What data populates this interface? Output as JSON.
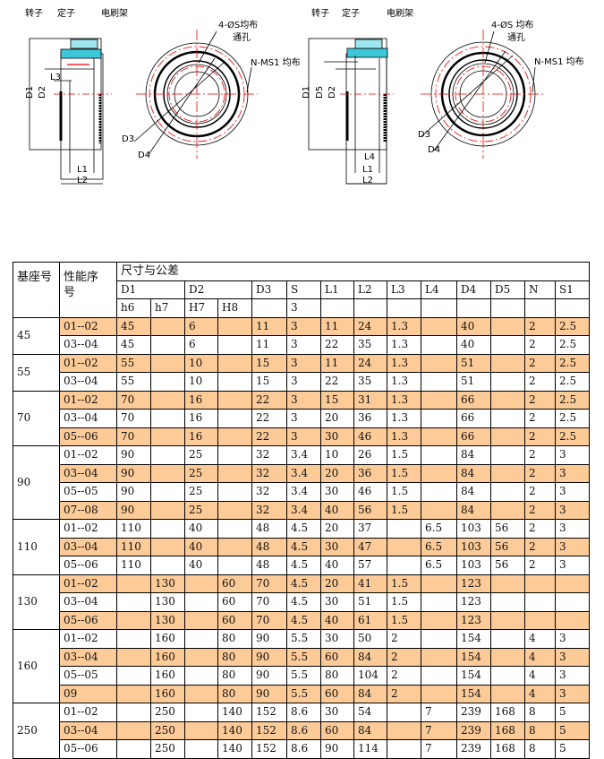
{
  "drawing_left": {
    "rotor": "转子",
    "stator": "定子",
    "brush": "电刷架",
    "holes": "4-ØS均布",
    "through": "通孔",
    "nms": "N-MS1 均布",
    "D1": "D1",
    "D2": "D2",
    "D3": "D3",
    "D4": "D4",
    "L1": "L1",
    "L2": "L2",
    "L3": "L3"
  },
  "drawing_right": {
    "rotor": "转子",
    "stator": "定子",
    "brush": "电刷架",
    "holes": "4-ØS 均布",
    "through": "通孔",
    "nms": "N-MS1 均布",
    "D1": "D1",
    "D5": "D5",
    "D2": "D2",
    "D3": "D3",
    "D4": "D4",
    "L1": "L1",
    "L2": "L2",
    "L4": "L4"
  },
  "table": {
    "h_base": "基座号",
    "h_seq": "性能序号",
    "h_dims": "尺寸与公差",
    "cols": [
      "D1",
      "D2",
      "D3",
      "S",
      "L1",
      "L2",
      "L3",
      "L4",
      "D4",
      "D5",
      "N",
      "S1"
    ],
    "tols": [
      "h6",
      "h7",
      "H7",
      "H8",
      "",
      "3",
      "",
      "",
      "",
      "",
      "",
      "",
      "",
      "",
      ""
    ],
    "highlight": "#fdcb98",
    "groups": [
      {
        "base": "45",
        "rows": [
          {
            "hl": true,
            "v": [
              "01--02",
              "45",
              "",
              "6",
              "",
              "11",
              "3",
              "11",
              "24",
              "1.3",
              "",
              "40",
              "",
              "2",
              "2.5"
            ]
          },
          {
            "hl": false,
            "v": [
              "03--04",
              "45",
              "",
              "6",
              "",
              "11",
              "3",
              "22",
              "35",
              "1.3",
              "",
              "40",
              "",
              "2",
              "2.5"
            ]
          }
        ]
      },
      {
        "base": "55",
        "rows": [
          {
            "hl": true,
            "v": [
              "01--02",
              "55",
              "",
              "10",
              "",
              "15",
              "3",
              "11",
              "24",
              "1.3",
              "",
              "51",
              "",
              "2",
              "2.5"
            ]
          },
          {
            "hl": false,
            "v": [
              "03--04",
              "55",
              "",
              "10",
              "",
              "15",
              "3",
              "22",
              "35",
              "1.3",
              "",
              "51",
              "",
              "2",
              "2.5"
            ]
          }
        ]
      },
      {
        "base": "70",
        "rows": [
          {
            "hl": true,
            "v": [
              "01--02",
              "70",
              "",
              "16",
              "",
              "22",
              "3",
              "15",
              "31",
              "1.3",
              "",
              "66",
              "",
              "2",
              "2.5"
            ]
          },
          {
            "hl": false,
            "v": [
              "03--04",
              "70",
              "",
              "16",
              "",
              "22",
              "3",
              "20",
              "36",
              "1.3",
              "",
              "66",
              "",
              "2",
              "2.5"
            ]
          },
          {
            "hl": true,
            "v": [
              "05--06",
              "70",
              "",
              "16",
              "",
              "22",
              "3",
              "30",
              "46",
              "1.3",
              "",
              "66",
              "",
              "2",
              "2.5"
            ]
          }
        ]
      },
      {
        "base": "90",
        "rows": [
          {
            "hl": false,
            "v": [
              "01--02",
              "90",
              "",
              "25",
              "",
              "32",
              "3.4",
              "10",
              "26",
              "1.5",
              "",
              "84",
              "",
              "2",
              "3"
            ]
          },
          {
            "hl": true,
            "v": [
              "03--04",
              "90",
              "",
              "25",
              "",
              "32",
              "3.4",
              "20",
              "36",
              "1.5",
              "",
              "84",
              "",
              "2",
              "3"
            ]
          },
          {
            "hl": false,
            "v": [
              "05--05",
              "90",
              "",
              "25",
              "",
              "32",
              "3.4",
              "30",
              "46",
              "1.5",
              "",
              "84",
              "",
              "2",
              "3"
            ]
          },
          {
            "hl": true,
            "v": [
              "07--08",
              "90",
              "",
              "25",
              "",
              "32",
              "3.4",
              "40",
              "56",
              "1.5",
              "",
              "84",
              "",
              "2",
              "3"
            ]
          }
        ]
      },
      {
        "base": "110",
        "rows": [
          {
            "hl": false,
            "v": [
              "01--02",
              "110",
              "",
              "40",
              "",
              "48",
              "4.5",
              "20",
              "37",
              "",
              "6.5",
              "103",
              "56",
              "2",
              "3"
            ]
          },
          {
            "hl": true,
            "v": [
              "03--04",
              "110",
              "",
              "40",
              "",
              "48",
              "4.5",
              "30",
              "47",
              "",
              "6.5",
              "103",
              "56",
              "2",
              "3"
            ]
          },
          {
            "hl": false,
            "v": [
              "05--06",
              "110",
              "",
              "40",
              "",
              "48",
              "4.5",
              "40",
              "57",
              "",
              "6.5",
              "103",
              "56",
              "2",
              "3"
            ]
          }
        ]
      },
      {
        "base": "130",
        "rows": [
          {
            "hl": true,
            "v": [
              "01--02",
              "",
              "130",
              "",
              "60",
              "70",
              "4.5",
              "20",
              "41",
              "1.5",
              "",
              "123",
              "",
              "",
              ""
            ]
          },
          {
            "hl": false,
            "v": [
              "03--04",
              "",
              "130",
              "",
              "60",
              "70",
              "4.5",
              "30",
              "51",
              "1.5",
              "",
              "123",
              "",
              "",
              ""
            ]
          },
          {
            "hl": true,
            "v": [
              "05--06",
              "",
              "130",
              "",
              "60",
              "70",
              "4.5",
              "40",
              "61",
              "1.5",
              "",
              "123",
              "",
              "",
              ""
            ]
          }
        ]
      },
      {
        "base": "160",
        "rows": [
          {
            "hl": false,
            "v": [
              "01--02",
              "",
              "160",
              "",
              "80",
              "90",
              "5.5",
              "30",
              "50",
              "2",
              "",
              "154",
              "",
              "4",
              "3"
            ]
          },
          {
            "hl": true,
            "v": [
              "03--04",
              "",
              "160",
              "",
              "80",
              "90",
              "5.5",
              "60",
              "84",
              "2",
              "",
              "154",
              "",
              "4",
              "3"
            ]
          },
          {
            "hl": false,
            "v": [
              "05--05",
              "",
              "160",
              "",
              "80",
              "90",
              "5.5",
              "80",
              "104",
              "2",
              "",
              "154",
              "",
              "4",
              "3"
            ]
          },
          {
            "hl": true,
            "v": [
              "09",
              "",
              "160",
              "",
              "80",
              "90",
              "5.5",
              "60",
              "84",
              "2",
              "",
              "154",
              "",
              "4",
              "3"
            ]
          }
        ]
      },
      {
        "base": "250",
        "rows": [
          {
            "hl": false,
            "v": [
              "01--02",
              "",
              "250",
              "",
              "140",
              "152",
              "8.6",
              "30",
              "54",
              "",
              "7",
              "239",
              "168",
              "8",
              "5"
            ]
          },
          {
            "hl": true,
            "v": [
              "03--04",
              "",
              "250",
              "",
              "140",
              "152",
              "8.6",
              "60",
              "84",
              "",
              "7",
              "239",
              "168",
              "8",
              "5"
            ]
          },
          {
            "hl": false,
            "v": [
              "05--06",
              "",
              "250",
              "",
              "140",
              "152",
              "8.6",
              "90",
              "114",
              "",
              "7",
              "239",
              "168",
              "8",
              "5"
            ]
          }
        ]
      }
    ]
  }
}
